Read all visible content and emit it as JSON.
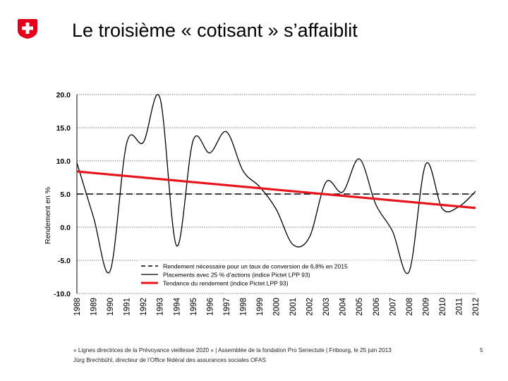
{
  "slide": {
    "title": "Le troisième « cotisant » s’affaiblit",
    "logo": "swiss-cross-icon",
    "footer_line1": "« Lignes directrices de la Prévoyance vieillesse 2020 » | Assemblée de la fondation Pro Senectute | Fribourg, le 25 juin 2013",
    "footer_line2": "Jürg Brechbühl, directeur de l’Office fédéral des assurances sociales OFAS",
    "page_number": "5"
  },
  "colors": {
    "brand_red": "#e3001b",
    "trend_red": "#e8141c",
    "line": "#000000"
  },
  "chart_data": {
    "type": "line",
    "title": "",
    "xlabel": "",
    "ylabel": "Rendement en %",
    "ylim": [
      -10,
      20
    ],
    "yticks": [
      20,
      15,
      10,
      5,
      0,
      -5,
      -10
    ],
    "ytick_labels": [
      "20.0",
      "15.0",
      "10.0",
      "5.0",
      "0.0",
      "-5.0",
      "-10.0"
    ],
    "x": [
      1988,
      1989,
      1990,
      1991,
      1992,
      1993,
      1994,
      1995,
      1996,
      1997,
      1998,
      1999,
      2000,
      2001,
      2002,
      2003,
      2004,
      2005,
      2006,
      2007,
      2008,
      2009,
      2010,
      2011,
      2012
    ],
    "xtick_labels": [
      "1988",
      "1989",
      "1990",
      "1991",
      "1992",
      "1993",
      "1994",
      "1995",
      "1996",
      "1997",
      "1998",
      "1999",
      "2000",
      "2001",
      "2002",
      "2003",
      "2004",
      "2005",
      "2006",
      "2007",
      "2008",
      "2009",
      "2010",
      "2011",
      "2012"
    ],
    "series": [
      {
        "name": "Rendement nécessaire pour un taux de conversion de 6,8% en 2015",
        "style": "dashed",
        "color": "#000000",
        "x": [
          1988,
          2011.9
        ],
        "values": [
          5.0,
          5.0
        ]
      },
      {
        "name": "Placements avec 25 % d’actions (indice Pictet LPP 93)",
        "style": "solid",
        "color": "#000000",
        "x": [
          1988,
          1989,
          1990,
          1991,
          1992,
          1993,
          1994,
          1995,
          1996,
          1997,
          1998,
          1999,
          2000,
          2001,
          2002,
          2003,
          2004,
          2005,
          2006,
          2007,
          2008,
          2009,
          2010,
          2011,
          2012
        ],
        "values": [
          9.7,
          1.5,
          -6.6,
          12.7,
          12.8,
          19.5,
          -2.8,
          13.1,
          11.2,
          14.4,
          8.5,
          6.1,
          2.7,
          -2.6,
          -1.5,
          6.8,
          5.3,
          10.3,
          3.4,
          -0.6,
          -6.7,
          9.5,
          2.8,
          3.1,
          5.4
        ]
      },
      {
        "name": "Tendance du rendement (indice Pictet LPP 93)",
        "style": "solid",
        "color": "#e8141c",
        "x": [
          1988,
          2012
        ],
        "values": [
          8.4,
          2.9
        ]
      }
    ],
    "legend": "bottom-center",
    "grid": "horizontal-dotted"
  }
}
